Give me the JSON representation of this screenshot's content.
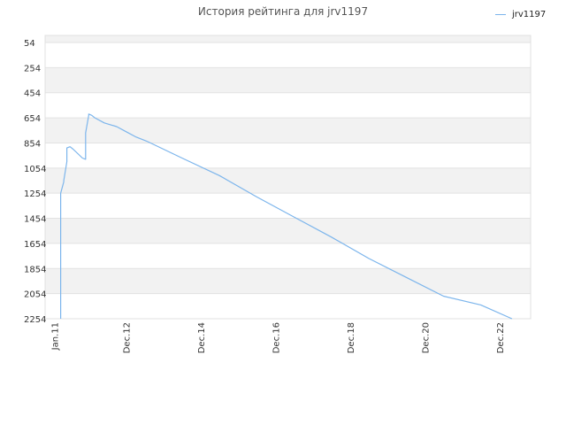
{
  "chart_data": {
    "type": "line",
    "title": "История рейтинга для jrv1197",
    "xlabel": "",
    "ylabel": "",
    "y_inverted": true,
    "ylim": [
      54,
      2254
    ],
    "y_ticks": [
      54,
      254,
      454,
      654,
      854,
      1054,
      1254,
      1454,
      1654,
      1854,
      2054,
      2254
    ],
    "x_tick_labels": [
      "Jan.11",
      "Dec.12",
      "Dec.14",
      "Dec.16",
      "Dec.18",
      "Dec.20",
      "Dec.22"
    ],
    "x_tick_dates": [
      "2011-01",
      "2012-12",
      "2014-12",
      "2016-12",
      "2018-12",
      "2020-12",
      "2022-12"
    ],
    "xlim": [
      "2010-10",
      "2023-10"
    ],
    "grid": true,
    "legend_position": "top-right",
    "series": [
      {
        "name": "jrv1197",
        "color": "#7cb5ec",
        "x": [
          "2011-03",
          "2011-03",
          "2011-04",
          "2011-04",
          "2011-05",
          "2011-05",
          "2011-06",
          "2011-07",
          "2011-10",
          "2011-11",
          "2011-11",
          "2011-12",
          "2011-12",
          "2012-01",
          "2012-02",
          "2012-05",
          "2012-09",
          "2012-12",
          "2013-03",
          "2013-04",
          "2013-06",
          "2013-07",
          "2014-06",
          "2015-06",
          "2016-06",
          "2017-06",
          "2018-06",
          "2019-06",
          "2020-06",
          "2021-06",
          "2022-06",
          "2023-04"
        ],
        "y": [
          2254,
          1254,
          1164,
          1154,
          1004,
          894,
          884,
          904,
          974,
          984,
          774,
          634,
          624,
          634,
          654,
          694,
          724,
          764,
          804,
          814,
          834,
          844,
          974,
          1114,
          1284,
          1444,
          1604,
          1774,
          1924,
          2074,
          2144,
          2254
        ]
      }
    ]
  }
}
